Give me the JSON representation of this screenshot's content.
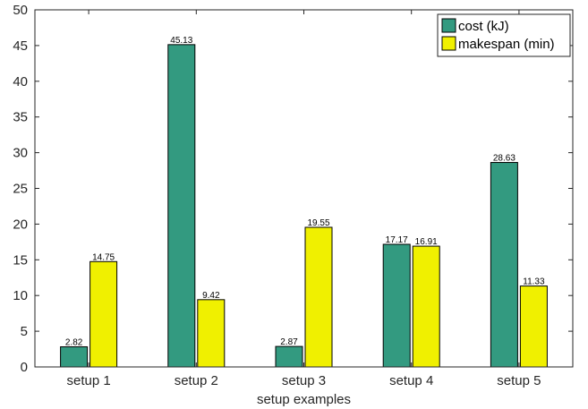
{
  "chart_data": {
    "type": "bar",
    "title": "",
    "xlabel": "setup examples",
    "ylabel": "",
    "categories": [
      "setup 1",
      "setup 2",
      "setup 3",
      "setup 4",
      "setup 5"
    ],
    "ylim": [
      0,
      50
    ],
    "yticks": [
      0,
      5,
      10,
      15,
      20,
      25,
      30,
      35,
      40,
      45,
      50
    ],
    "grid": false,
    "legend_position": "top-right",
    "series": [
      {
        "name": "cost (kJ)",
        "color": "#339a80",
        "values": [
          2.82,
          45.13,
          2.87,
          17.17,
          28.63
        ],
        "labels": [
          "2.82",
          "45.13",
          "2.87",
          "17.17",
          "28.63"
        ]
      },
      {
        "name": "makespan (min)",
        "color": "#f0f000",
        "values": [
          14.75,
          9.42,
          19.55,
          16.91,
          11.33
        ],
        "labels": [
          "14.75",
          "9.42",
          "19.55",
          "16.91",
          "11.33"
        ]
      }
    ]
  }
}
